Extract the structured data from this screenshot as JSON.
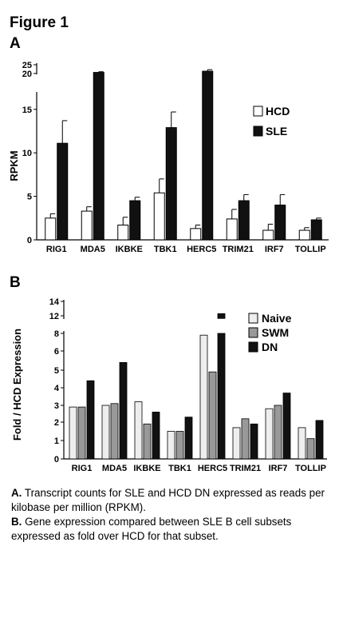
{
  "figure_title": "Figure 1",
  "panel_a_label": "A",
  "panel_b_label": "B",
  "caption": {
    "a_key": "A.",
    "a_text": " Transcript counts for SLE and HCD DN expressed as reads per kilobase per million (RPKM).",
    "b_key": "B.",
    "b_text": " Gene expression compared between SLE B cell subsets expressed as fold over HCD for that subset."
  },
  "colors": {
    "white": "#ffffff",
    "gray": "#999999",
    "light": "#eeeeee",
    "black": "#111111"
  },
  "chart_data": [
    {
      "type": "bar",
      "panel": "A",
      "ylabel": "RPKM",
      "xlabel": "",
      "categories": [
        "RIG1",
        "MDA5",
        "IKBKE",
        "TBK1",
        "HERC5",
        "TRIM21",
        "IRF7",
        "TOLLIP"
      ],
      "y_ticks": [
        0,
        5,
        10,
        15,
        20,
        25
      ],
      "y_break": {
        "lower_max": 17,
        "upper_min": 19.5,
        "upper_max": 25
      },
      "legend_position": "top-right",
      "series": [
        {
          "name": "HCD",
          "color": "#ffffff",
          "values": [
            2.5,
            3.3,
            1.7,
            5.4,
            1.3,
            2.4,
            1.1,
            1.1
          ],
          "errors": [
            0.5,
            0.5,
            0.9,
            1.6,
            0.4,
            1.1,
            0.7,
            0.3
          ]
        },
        {
          "name": "SLE",
          "color": "#111111",
          "values": [
            11.1,
            20.6,
            4.5,
            12.9,
            21.3,
            4.5,
            4.0,
            2.3
          ],
          "errors": [
            2.6,
            0.4,
            0.4,
            1.8,
            0.9,
            0.7,
            1.2,
            0.2
          ]
        }
      ]
    },
    {
      "type": "bar",
      "panel": "B",
      "ylabel": "Fold / HCD Expression",
      "xlabel": "",
      "categories": [
        "RIG1",
        "MDA5",
        "IKBKE",
        "TBK1",
        "HERC5",
        "TRIM21",
        "IRF7",
        "TOLLIP"
      ],
      "y_ticks_lower": [
        0,
        1,
        2,
        3,
        4,
        5,
        6,
        8
      ],
      "y_ticks_upper": [
        12,
        14
      ],
      "legend_position": "top-right",
      "series": [
        {
          "name": "Naive",
          "color": "#eeeeee",
          "values": [
            2.9,
            3.0,
            3.2,
            1.5,
            7.8,
            1.7,
            2.8,
            1.7
          ]
        },
        {
          "name": "SWM",
          "color": "#999999",
          "values": [
            2.9,
            3.1,
            1.9,
            1.5,
            4.9,
            2.2,
            3.0,
            1.1
          ]
        },
        {
          "name": "DN",
          "color": "#111111",
          "values": [
            4.4,
            5.4,
            2.6,
            2.3,
            12.3,
            1.9,
            3.7,
            2.1
          ]
        }
      ]
    }
  ]
}
